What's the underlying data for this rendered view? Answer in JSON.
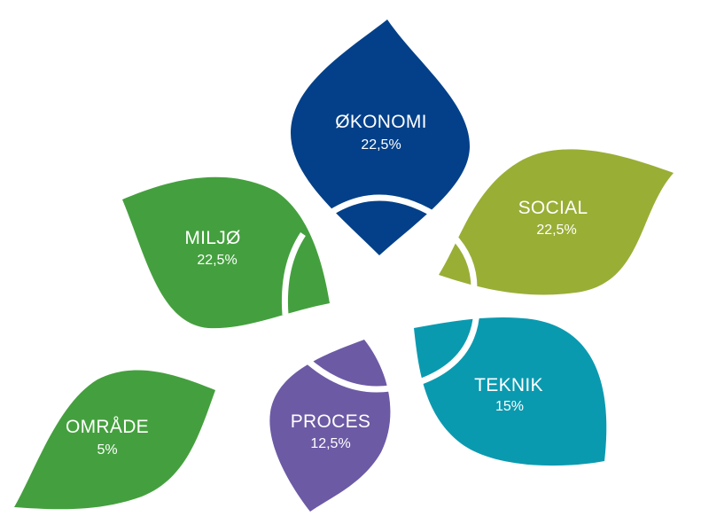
{
  "leaves": [
    {
      "id": "okonomi",
      "label": "ØKONOMI",
      "value": "22,5%",
      "color": "#034089"
    },
    {
      "id": "social",
      "label": "SOCIAL",
      "value": "22,5%",
      "color": "#99AE35"
    },
    {
      "id": "teknik",
      "label": "TEKNIK",
      "value": "15%",
      "color": "#0A9AB0"
    },
    {
      "id": "proces",
      "label": "PROCES",
      "value": "12,5%",
      "color": "#6C5AA5"
    },
    {
      "id": "miljo",
      "label": "MILJØ",
      "value": "22,5%",
      "color": "#44A03E"
    },
    {
      "id": "omrade",
      "label": "OMRÅDE",
      "value": "5%",
      "color": "#44A03E"
    }
  ]
}
